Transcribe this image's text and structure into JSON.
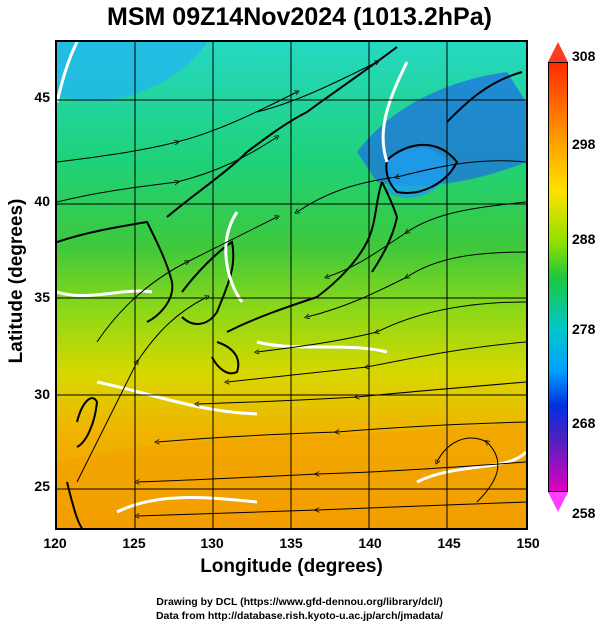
{
  "title": "MSM 09Z14Nov2024 (1013.2hPa)",
  "map": {
    "xlabel": "Longitude (degrees)",
    "ylabel": "Latitude  (degrees)",
    "x_ticks": [
      "120",
      "125",
      "130",
      "135",
      "140",
      "145",
      "150"
    ],
    "y_ticks": [
      "25",
      "30",
      "35",
      "40",
      "45"
    ],
    "x_range": [
      120,
      150
    ],
    "y_range": [
      22.4,
      47.6
    ],
    "field": "temperature (K) with wind streamlines",
    "contour_color": "#ffffff"
  },
  "colorbar": {
    "labels": [
      "308",
      "298",
      "288",
      "278",
      "268",
      "258"
    ],
    "range": [
      258,
      308
    ]
  },
  "credits": {
    "line1": "Drawing by DCL (https://www.gfd-dennou.org/library/dcl/)",
    "line2": "Data from http://database.rish.kyoto-u.ac.jp/arch/jmadata/"
  }
}
